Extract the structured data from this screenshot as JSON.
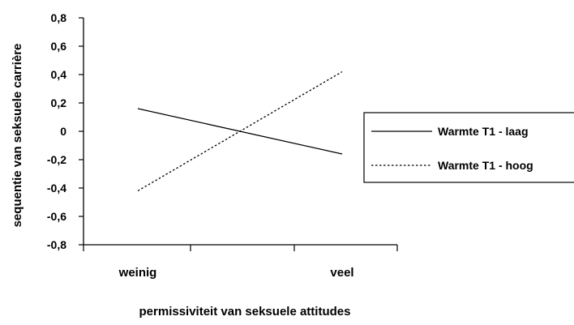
{
  "chart_data": {
    "type": "line",
    "title": "",
    "xlabel": "permissiviteit van seksuele attitudes",
    "ylabel": "sequentie van seksuele carrière",
    "categories": [
      "weinig",
      "veel"
    ],
    "ylim": [
      -0.8,
      0.8
    ],
    "yticks": [
      "0,8",
      "0,6",
      "0,4",
      "0,2",
      "0",
      "-0,2",
      "-0,4",
      "-0,6",
      "-0,8"
    ],
    "grid": false,
    "legend_position": "right",
    "series": [
      {
        "name": "Warmte T1 - laag",
        "values": [
          0.16,
          -0.16
        ],
        "style": "solid",
        "color": "#000000"
      },
      {
        "name": "Warmte T1 - hoog",
        "values": [
          -0.42,
          0.42
        ],
        "style": "dotted",
        "color": "#000000"
      }
    ]
  }
}
